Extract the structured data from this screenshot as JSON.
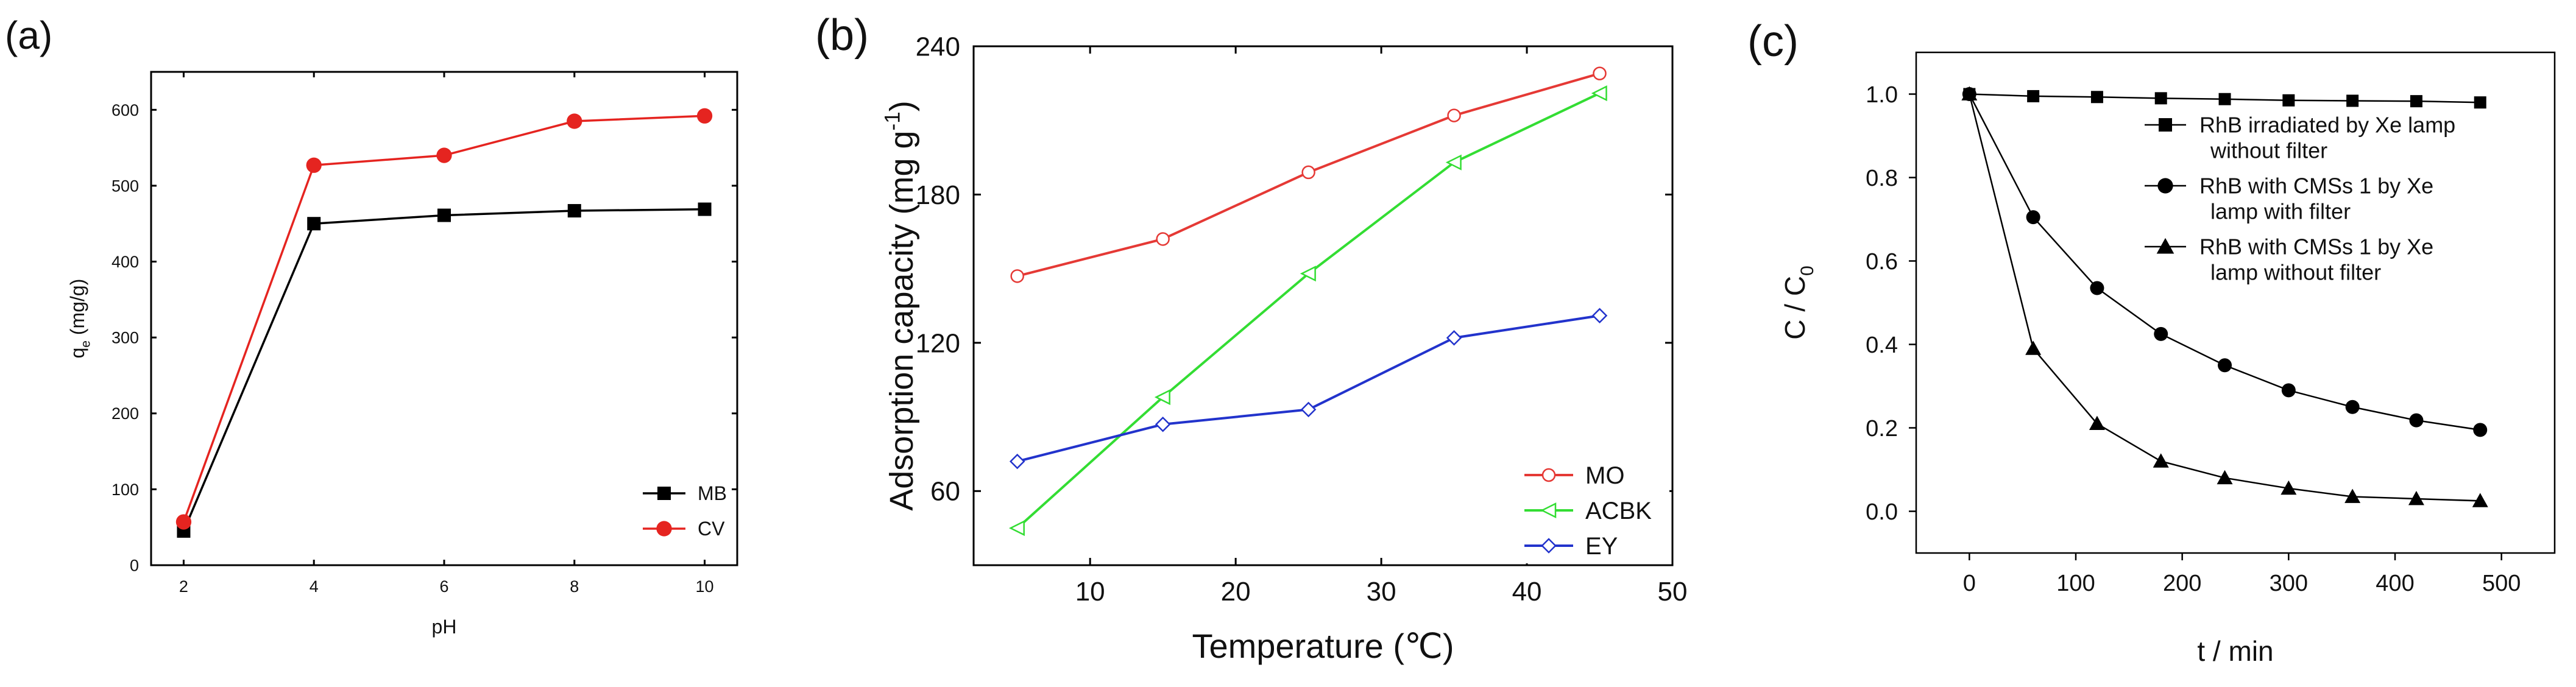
{
  "figure": {
    "background": "#ffffff"
  },
  "chart_data": [
    {
      "id": "a",
      "panel_label": "(a)",
      "type": "line",
      "title": "",
      "xlabel": "pH",
      "ylabel": {
        "main": "q",
        "sub": "e",
        "rest": " (mg/g)"
      },
      "xlim": [
        1.5,
        10.5
      ],
      "ylim": [
        0,
        650
      ],
      "xticks": [
        2,
        4,
        6,
        8,
        10
      ],
      "yticks": [
        0,
        100,
        200,
        300,
        400,
        500,
        600
      ],
      "legend_position": "bottom-right",
      "series": [
        {
          "name": "MB",
          "color": "#000000",
          "marker": "square",
          "x": [
            2,
            4,
            6,
            8,
            10
          ],
          "y": [
            45,
            450,
            461,
            467,
            469
          ]
        },
        {
          "name": "CV",
          "color": "#e52420",
          "marker": "circle",
          "x": [
            2,
            4,
            6,
            8,
            10
          ],
          "y": [
            57,
            527,
            540,
            585,
            592
          ]
        }
      ]
    },
    {
      "id": "b",
      "panel_label": "(b)",
      "type": "line",
      "title": "",
      "xlabel": "Temperature (℃)",
      "ylabel": {
        "main": "Adsorption capacity (mg g",
        "sup": "-1",
        "rest": ")"
      },
      "xlim": [
        2,
        50
      ],
      "ylim": [
        30,
        240
      ],
      "xticks": [
        10,
        20,
        30,
        40,
        50
      ],
      "yticks": [
        60,
        120,
        180,
        240
      ],
      "legend_position": "bottom-right",
      "series": [
        {
          "name": "MO",
          "color": "#e53935",
          "marker": "open-circle",
          "x": [
            5,
            15,
            25,
            35,
            45
          ],
          "y": [
            147,
            162,
            189,
            212,
            229
          ]
        },
        {
          "name": "ACBK",
          "color": "#33dd33",
          "marker": "open-triangle",
          "x": [
            5,
            15,
            25,
            35,
            45
          ],
          "y": [
            45,
            98,
            148,
            193,
            221
          ]
        },
        {
          "name": "EY",
          "color": "#2233cc",
          "marker": "open-diamond",
          "x": [
            5,
            15,
            25,
            35,
            45
          ],
          "y": [
            72,
            87,
            93,
            122,
            131
          ]
        }
      ]
    },
    {
      "id": "c",
      "panel_label": "(c)",
      "type": "line",
      "title": "",
      "xlabel": "t / min",
      "ylabel": {
        "main": "C / C",
        "sub": "0",
        "rest": ""
      },
      "xlim": [
        -50,
        550
      ],
      "ylim": [
        -0.1,
        1.1
      ],
      "xticks": [
        0,
        100,
        200,
        300,
        400,
        500
      ],
      "yticks": [
        0.0,
        0.2,
        0.4,
        0.6,
        0.8,
        1.0
      ],
      "ytick_labels": [
        "0.0",
        "0.2",
        "0.4",
        "0.6",
        "0.8",
        "1.0"
      ],
      "legend_position": "top-right",
      "series": [
        {
          "name_lines": [
            "RhB irradiated by Xe lamp",
            "without filter"
          ],
          "color": "#000000",
          "marker": "square",
          "x": [
            0,
            60,
            120,
            180,
            240,
            300,
            360,
            420,
            480
          ],
          "y": [
            1.0,
            0.995,
            0.993,
            0.99,
            0.988,
            0.985,
            0.984,
            0.983,
            0.98
          ]
        },
        {
          "name_lines": [
            "RhB with CMSs 1 by Xe",
            "lamp with filter"
          ],
          "color": "#000000",
          "marker": "circle",
          "x": [
            0,
            60,
            120,
            180,
            240,
            300,
            360,
            420,
            480
          ],
          "y": [
            1.0,
            0.705,
            0.535,
            0.425,
            0.35,
            0.29,
            0.25,
            0.218,
            0.195
          ]
        },
        {
          "name_lines": [
            "RhB with CMSs 1 by Xe",
            "lamp without filter"
          ],
          "color": "#000000",
          "marker": "triangle",
          "x": [
            0,
            60,
            120,
            180,
            240,
            300,
            360,
            420,
            480
          ],
          "y": [
            1.0,
            0.39,
            0.21,
            0.12,
            0.08,
            0.055,
            0.035,
            0.03,
            0.025
          ]
        }
      ]
    }
  ]
}
